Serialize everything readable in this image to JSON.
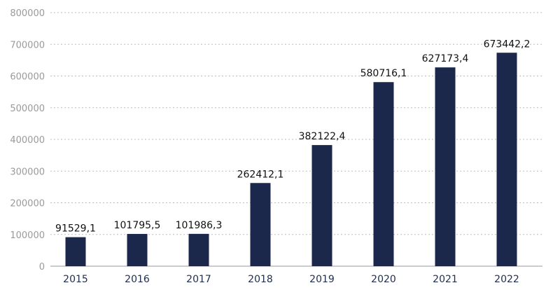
{
  "chart_data": {
    "type": "bar",
    "categories": [
      "2015",
      "2016",
      "2017",
      "2018",
      "2019",
      "2020",
      "2021",
      "2022"
    ],
    "values": [
      91529.1,
      101795.5,
      101986.3,
      262412.1,
      382122.4,
      580716.1,
      627173.4,
      673442.2
    ],
    "value_labels": [
      "91529,1",
      "101795,5",
      "101986,3",
      "262412,1",
      "382122,4",
      "580716,1",
      "627173,4",
      "673442,2"
    ],
    "title": "",
    "xlabel": "",
    "ylabel": "",
    "ylim": [
      0,
      800000
    ],
    "yticks": [
      0,
      100000,
      200000,
      300000,
      400000,
      500000,
      600000,
      700000,
      800000
    ],
    "ytick_labels": [
      "0",
      "100000",
      "200000",
      "300000",
      "400000",
      "500000",
      "600000",
      "700000",
      "800000"
    ],
    "grid": true,
    "grid_style": "dotted",
    "legend": "none",
    "colors": {
      "bar": "#1c284b",
      "grid": "#bdbdbd",
      "ytick_text": "#9a9a9a",
      "xtick_text": "#1f2d4e",
      "label_text": "#111111"
    }
  }
}
